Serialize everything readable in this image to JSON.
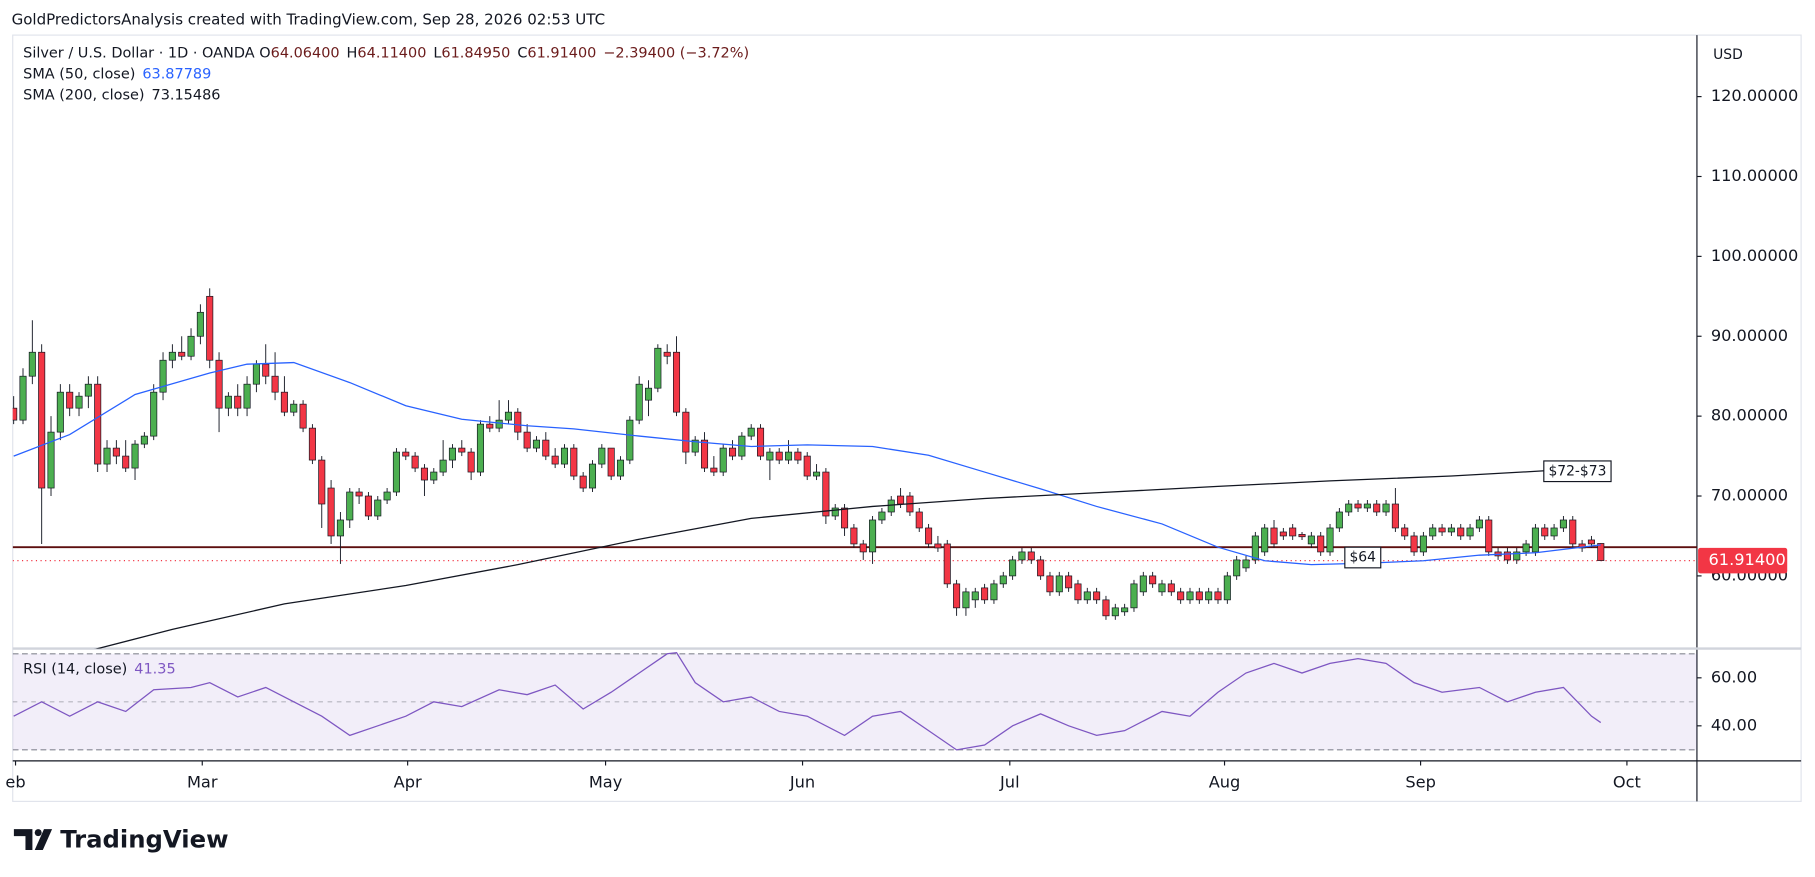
{
  "header": {
    "attribution": "GoldPredictorsAnalysis created with TradingView.com, Sep 28, 2026 02:53 UTC"
  },
  "footer": {
    "brand": "TradingView"
  },
  "chart_data": {
    "type": "candlestick",
    "symbol": "Silver / U.S. Dollar · 1D · OANDA",
    "ohlc_legend": [
      {
        "key": "O",
        "value": "64.06400"
      },
      {
        "key": "H",
        "value": "64.11400"
      },
      {
        "key": "L",
        "value": "61.84950"
      },
      {
        "key": "C",
        "value": "61.91400"
      }
    ],
    "change": "−2.39400 (−3.72%)",
    "currency": "USD",
    "last_price_label": "61.91400",
    "up_color": "#4caf50",
    "down_color": "#f23645",
    "ylim": [
      50.9,
      127.7
    ],
    "yticks": [
      {
        "value": 60,
        "label": "60.00000"
      },
      {
        "value": 70,
        "label": "70.00000"
      },
      {
        "value": 80,
        "label": "80.00000"
      },
      {
        "value": 90,
        "label": "90.00000"
      },
      {
        "value": 100,
        "label": "100.00000"
      },
      {
        "value": 110,
        "label": "110.00000"
      },
      {
        "value": 120,
        "label": "120.00000"
      }
    ],
    "xlim": [
      -0.1,
      180.3
    ],
    "xticks": [
      {
        "value": 0.2,
        "label": "eb"
      },
      {
        "value": 20.2,
        "label": "Mar"
      },
      {
        "value": 42.2,
        "label": "Apr"
      },
      {
        "value": 63.4,
        "label": "May"
      },
      {
        "value": 84.5,
        "label": "Jun"
      },
      {
        "value": 106.7,
        "label": "Jul"
      },
      {
        "value": 129.7,
        "label": "Aug"
      },
      {
        "value": 150.7,
        "label": "Sep"
      },
      {
        "value": 172.8,
        "label": "Oct"
      }
    ],
    "ohlc": [
      [
        81,
        82.5,
        79,
        79.5
      ],
      [
        79.5,
        86,
        79,
        85
      ],
      [
        85,
        92,
        84,
        88
      ],
      [
        88,
        89,
        64,
        71
      ],
      [
        71,
        80,
        70,
        78
      ],
      [
        78,
        84,
        77,
        83
      ],
      [
        83,
        84,
        80,
        81
      ],
      [
        81,
        83,
        80,
        82.5
      ],
      [
        82.5,
        85,
        81,
        84
      ],
      [
        84,
        85,
        73,
        74
      ],
      [
        74,
        77,
        73,
        76
      ],
      [
        76,
        77,
        74,
        75
      ],
      [
        75,
        77,
        73,
        73.5
      ],
      [
        73.5,
        77,
        72,
        76.5
      ],
      [
        76.5,
        78,
        76,
        77.5
      ],
      [
        77.5,
        84,
        77,
        83
      ],
      [
        83,
        88,
        82,
        87
      ],
      [
        87,
        89,
        86,
        88
      ],
      [
        88,
        90,
        87,
        87.5
      ],
      [
        87.5,
        91,
        87,
        90
      ],
      [
        90,
        94,
        89,
        93
      ],
      [
        95,
        96,
        86,
        87
      ],
      [
        87,
        88,
        78,
        81
      ],
      [
        81,
        83,
        80,
        82.5
      ],
      [
        82.5,
        84,
        80,
        81
      ],
      [
        81,
        85,
        80,
        84
      ],
      [
        84,
        87,
        83,
        86.5
      ],
      [
        86.5,
        89,
        84,
        85
      ],
      [
        85,
        88,
        82,
        83
      ],
      [
        83,
        85,
        80,
        80.5
      ],
      [
        80.5,
        82,
        80,
        81.5
      ],
      [
        81.5,
        82,
        78,
        78.5
      ],
      [
        78.5,
        79,
        74,
        74.5
      ],
      [
        74.5,
        75,
        66,
        69
      ],
      [
        71,
        72,
        64,
        65
      ],
      [
        65,
        68,
        61.5,
        67
      ],
      [
        67,
        71,
        66,
        70.5
      ],
      [
        70.5,
        71,
        69,
        70
      ],
      [
        70,
        70.5,
        67,
        67.5
      ],
      [
        67.5,
        70,
        67,
        69.5
      ],
      [
        69.5,
        71,
        69,
        70.5
      ],
      [
        70.5,
        76,
        70,
        75.5
      ],
      [
        75.5,
        76,
        74.5,
        75
      ],
      [
        75,
        75.5,
        73,
        73.5
      ],
      [
        73.5,
        74,
        70,
        72
      ],
      [
        72,
        73.5,
        71.5,
        73
      ],
      [
        73,
        77,
        72.5,
        74.5
      ],
      [
        74.5,
        76.5,
        73.5,
        76
      ],
      [
        76,
        77,
        75,
        75.5
      ],
      [
        75.5,
        76,
        72,
        73
      ],
      [
        73,
        79.5,
        72.5,
        79
      ],
      [
        79,
        80,
        78,
        78.5
      ],
      [
        78.5,
        82,
        78,
        79.5
      ],
      [
        79.5,
        82,
        79,
        80.5
      ],
      [
        80.5,
        81,
        77,
        78
      ],
      [
        78,
        79,
        75.5,
        76
      ],
      [
        76,
        77.5,
        75.5,
        77
      ],
      [
        77,
        78,
        74.5,
        75
      ],
      [
        75,
        76,
        73.5,
        74
      ],
      [
        74,
        76.5,
        73.5,
        76
      ],
      [
        76,
        76.5,
        72,
        72.5
      ],
      [
        72.5,
        73,
        70.5,
        71
      ],
      [
        71,
        74.5,
        70.5,
        74
      ],
      [
        74,
        76.5,
        73.5,
        76
      ],
      [
        76,
        76,
        72,
        72.5
      ],
      [
        72.5,
        75,
        72,
        74.5
      ],
      [
        74.5,
        80,
        74,
        79.5
      ],
      [
        79.5,
        85,
        79,
        84
      ],
      [
        82,
        84.5,
        80,
        83.5
      ],
      [
        83.5,
        89,
        83,
        88.5
      ],
      [
        88,
        89,
        86.5,
        87.5
      ],
      [
        88,
        90,
        80,
        80.5
      ],
      [
        80.5,
        81,
        74,
        75.5
      ],
      [
        75.5,
        77.5,
        75,
        77
      ],
      [
        77,
        78,
        73,
        73.5
      ],
      [
        73.5,
        75,
        72.5,
        73
      ],
      [
        73,
        76.5,
        72.5,
        76
      ],
      [
        76,
        77,
        74.5,
        75
      ],
      [
        75,
        78,
        74.5,
        77.5
      ],
      [
        77.5,
        79,
        77,
        78.5
      ],
      [
        78.5,
        79,
        74.5,
        75
      ],
      [
        74.5,
        76,
        72,
        75.5
      ],
      [
        75.5,
        76,
        74,
        74.5
      ],
      [
        74.5,
        77,
        74,
        75.5
      ],
      [
        75.5,
        76,
        74,
        74.5
      ],
      [
        75,
        75.5,
        72,
        72.5
      ],
      [
        72.5,
        74,
        72,
        73
      ],
      [
        73,
        73.5,
        66.5,
        67.5
      ],
      [
        67.5,
        69,
        67,
        68.5
      ],
      [
        68.5,
        69,
        65,
        66
      ],
      [
        66,
        66.5,
        63.5,
        64
      ],
      [
        64,
        64.5,
        62,
        63
      ],
      [
        63,
        67.5,
        61.5,
        67
      ],
      [
        67,
        68.5,
        66.5,
        68
      ],
      [
        68,
        70,
        67.5,
        69.5
      ],
      [
        70,
        71,
        68.5,
        69
      ],
      [
        70,
        70.5,
        67.5,
        68
      ],
      [
        68,
        68.5,
        65.5,
        66
      ],
      [
        66,
        66.5,
        63.5,
        64
      ],
      [
        64,
        65,
        63,
        63.5
      ],
      [
        64,
        64.5,
        58.5,
        59
      ],
      [
        59,
        59.5,
        55,
        56
      ],
      [
        56,
        58.5,
        55,
        58
      ],
      [
        57,
        58.5,
        56,
        58
      ],
      [
        58.5,
        59,
        56.5,
        57
      ],
      [
        57,
        59.5,
        56.5,
        59
      ],
      [
        59,
        60.5,
        58.5,
        60
      ],
      [
        60,
        62.5,
        59.5,
        62
      ],
      [
        62,
        63.5,
        61.5,
        63
      ],
      [
        63,
        63.5,
        61.5,
        62
      ],
      [
        62,
        62.5,
        59.5,
        60
      ],
      [
        60,
        60.5,
        57.5,
        58
      ],
      [
        58,
        60.5,
        57.5,
        60
      ],
      [
        60,
        60.5,
        58,
        58.5
      ],
      [
        59,
        59.5,
        56.5,
        57
      ],
      [
        57,
        58.5,
        56.5,
        58
      ],
      [
        58,
        58.5,
        56.5,
        57
      ],
      [
        57,
        57.5,
        54.5,
        55
      ],
      [
        55,
        56.5,
        54.5,
        56
      ],
      [
        55.5,
        56.5,
        55,
        56
      ],
      [
        56,
        59.5,
        55.5,
        59
      ],
      [
        58,
        60.5,
        57.5,
        60
      ],
      [
        60,
        60.5,
        58.5,
        59
      ],
      [
        58,
        59.5,
        57.5,
        59
      ],
      [
        59,
        59.5,
        57.5,
        58
      ],
      [
        58,
        58.5,
        56.5,
        57
      ],
      [
        57,
        58.5,
        56.5,
        58
      ],
      [
        58,
        58.5,
        56.5,
        57
      ],
      [
        57,
        58.5,
        56.5,
        58
      ],
      [
        58,
        58.5,
        56.5,
        57
      ],
      [
        57,
        60.5,
        56.5,
        60
      ],
      [
        60,
        62.5,
        59.5,
        62
      ],
      [
        61,
        62.5,
        60.5,
        62
      ],
      [
        62,
        65.5,
        61.5,
        65
      ],
      [
        63,
        66.5,
        62.5,
        66
      ],
      [
        66,
        67,
        63.5,
        64
      ],
      [
        65.5,
        66,
        64.5,
        65
      ],
      [
        66,
        66.5,
        64.5,
        65
      ],
      [
        65.2,
        65.5,
        64.5,
        64.9
      ],
      [
        64,
        65.5,
        63.5,
        65
      ],
      [
        65,
        65.5,
        62.5,
        63
      ],
      [
        63,
        66.5,
        62.5,
        66
      ],
      [
        66,
        68.5,
        65.5,
        68
      ],
      [
        68,
        69.5,
        67.5,
        69
      ],
      [
        69,
        69.5,
        68,
        68.5
      ],
      [
        68.5,
        69.5,
        68,
        69
      ],
      [
        69,
        69.5,
        67.5,
        68
      ],
      [
        68,
        69.5,
        67.5,
        69
      ],
      [
        69,
        71,
        65.5,
        66
      ],
      [
        66,
        66.5,
        64.5,
        65
      ],
      [
        65,
        65.5,
        62.5,
        63
      ],
      [
        63,
        65.5,
        62.5,
        65
      ],
      [
        65,
        66.5,
        64.5,
        66
      ],
      [
        66,
        66.5,
        65,
        65.5
      ],
      [
        65.5,
        66.5,
        65,
        66
      ],
      [
        66,
        66.5,
        64.5,
        65
      ],
      [
        65,
        66.5,
        64.5,
        66
      ],
      [
        66,
        67.5,
        65.5,
        67
      ],
      [
        67,
        67.5,
        62.5,
        63
      ],
      [
        63,
        63.5,
        62,
        62.5
      ],
      [
        63,
        63.5,
        61.5,
        62
      ],
      [
        62,
        63.5,
        61.5,
        63
      ],
      [
        63,
        64.5,
        62.5,
        64
      ],
      [
        63,
        66.5,
        62.5,
        66
      ],
      [
        66,
        66.5,
        64.5,
        65
      ],
      [
        65,
        66.5,
        64.5,
        66
      ],
      [
        66,
        67.5,
        65.5,
        67
      ],
      [
        67,
        67.5,
        63.5,
        64
      ],
      [
        64,
        64.5,
        63,
        63.5
      ],
      [
        64.5,
        65,
        63.5,
        64
      ],
      [
        64.064,
        64.114,
        61.8495,
        61.914
      ]
    ],
    "series": [
      {
        "name": "SMA (50, close)",
        "value_label": "63.87789",
        "color": "#2962ff",
        "x": [
          0,
          6,
          13,
          21,
          25,
          30,
          36,
          42,
          48,
          55,
          60,
          67,
          73,
          79,
          85,
          92,
          98,
          104,
          110,
          116,
          123,
          129,
          134,
          139,
          145,
          151,
          157,
          163,
          170
        ],
        "values": [
          75,
          77.7,
          82.7,
          85.4,
          86.5,
          86.7,
          84.2,
          81.3,
          79.6,
          78.8,
          78.4,
          77.5,
          76.8,
          76.2,
          76.4,
          76.2,
          75.1,
          73,
          70.9,
          68.7,
          66.5,
          63.6,
          61.9,
          61.4,
          61.6,
          61.9,
          62.6,
          62.9,
          63.87789
        ]
      },
      {
        "name": "SMA (200, close)",
        "value_label": "73.15486",
        "color": "#131722",
        "x": [
          8,
          17,
          29,
          42,
          54,
          67,
          79,
          92,
          104,
          116,
          129,
          141,
          154,
          164
        ],
        "values": [
          50.6,
          53.3,
          56.5,
          58.8,
          61.4,
          64.6,
          67.2,
          68.7,
          69.7,
          70.4,
          71.2,
          71.9,
          72.5,
          73.15486
        ]
      }
    ],
    "hlines": [
      {
        "value": 63.6,
        "color": "#5d0f0f"
      }
    ],
    "annotations": [
      {
        "text": "$64",
        "x": 144.5,
        "y": 62.3
      },
      {
        "text": "$72-$73",
        "x": 167.5,
        "y": 73.1
      }
    ],
    "rsi": {
      "name": "RSI (14, close)",
      "value_label": "41.35",
      "color": "#7e57c2",
      "ylim": [
        25.4,
        71.7
      ],
      "yticks": [
        {
          "value": 60,
          "label": "60.00"
        },
        {
          "value": 40,
          "label": "40.00"
        }
      ],
      "bands": [
        70,
        50,
        30
      ],
      "x": [
        0,
        3,
        6,
        9,
        12,
        15,
        19,
        21,
        24,
        27,
        30,
        33,
        36,
        39,
        42,
        45,
        48,
        52,
        55,
        58,
        61,
        64,
        67,
        70,
        71,
        73,
        76,
        79,
        82,
        85,
        89,
        92,
        95,
        98,
        101,
        104,
        107,
        110,
        113,
        116,
        119,
        123,
        126,
        129,
        132,
        135,
        138,
        141,
        144,
        147,
        150,
        153,
        157,
        160,
        163,
        166,
        169,
        170
      ],
      "values": [
        44,
        50,
        44,
        50,
        46,
        55,
        56,
        58,
        52,
        56,
        50,
        44,
        36,
        40,
        44,
        50,
        48,
        55,
        53,
        57,
        47,
        54,
        62,
        70,
        70.5,
        58,
        50,
        52,
        46,
        44,
        36,
        44,
        46,
        38,
        30,
        32,
        40,
        45,
        40,
        36,
        38,
        46,
        44,
        54,
        62,
        66,
        62,
        66,
        68,
        66,
        58,
        54,
        56,
        50,
        54,
        56,
        44,
        41.35
      ]
    }
  }
}
